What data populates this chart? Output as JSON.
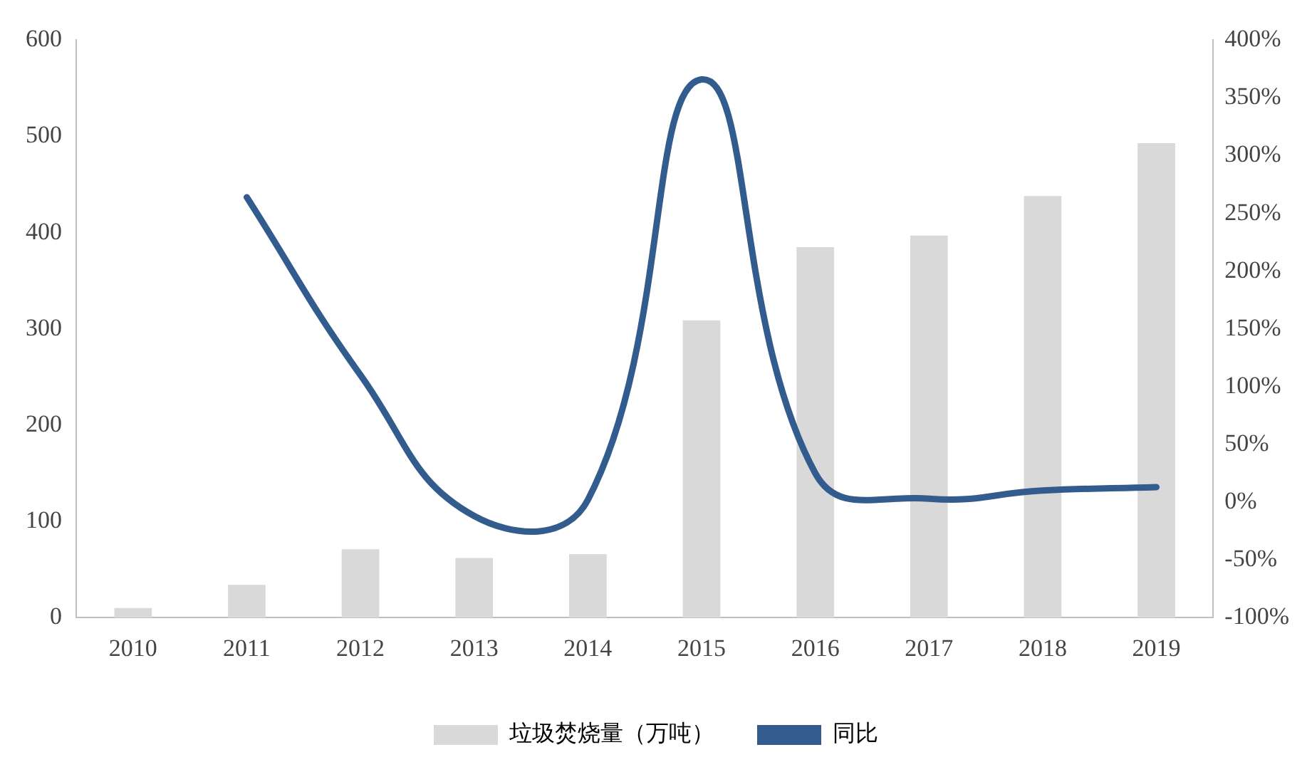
{
  "chart_data": {
    "type": "bar",
    "categories": [
      "2010",
      "2011",
      "2012",
      "2013",
      "2014",
      "2015",
      "2016",
      "2017",
      "2018",
      "2019"
    ],
    "series": [
      {
        "name": "垃圾焚烧量（万吨）",
        "color": "#d9d9d9",
        "values": [
          10,
          34,
          71,
          62,
          66,
          309,
          385,
          397,
          438,
          493
        ]
      },
      {
        "name": "同比",
        "type": "line",
        "axis": "y2",
        "color": "#335c8e",
        "values": [
          null,
          264,
          110,
          -12,
          2,
          366,
          25,
          3,
          10,
          13
        ]
      }
    ],
    "ylim": [
      0,
      600
    ],
    "yticks": [
      0,
      100,
      200,
      300,
      400,
      500,
      600
    ],
    "y2lim": [
      -100,
      400
    ],
    "y2ticks": [
      {
        "value": -100,
        "label": "-100%"
      },
      {
        "value": -50,
        "label": "-50%"
      },
      {
        "value": 0,
        "label": "0%"
      },
      {
        "value": 50,
        "label": "50%"
      },
      {
        "value": 100,
        "label": "100%"
      },
      {
        "value": 150,
        "label": "150%"
      },
      {
        "value": 200,
        "label": "200%"
      },
      {
        "value": 250,
        "label": "250%"
      },
      {
        "value": 300,
        "label": "300%"
      },
      {
        "value": 350,
        "label": "350%"
      },
      {
        "value": 400,
        "label": "400%"
      }
    ],
    "grid": false,
    "legend": "bottom",
    "marker": "none"
  }
}
